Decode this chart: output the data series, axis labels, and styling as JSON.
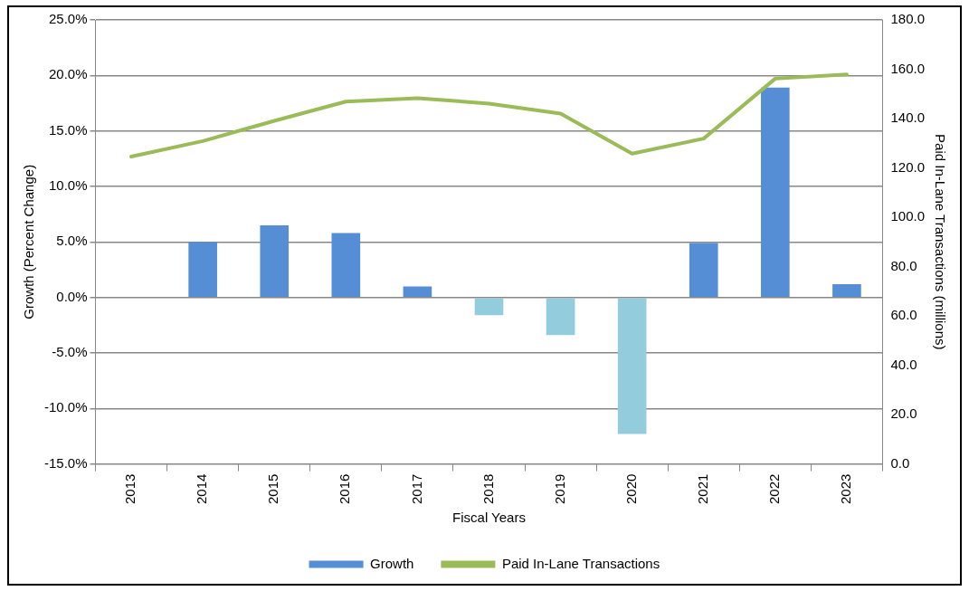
{
  "chart_data": {
    "type": "bar",
    "categories": [
      "2013",
      "2014",
      "2015",
      "2016",
      "2017",
      "2018",
      "2019",
      "2020",
      "2021",
      "2022",
      "2023"
    ],
    "xlabel": "Fiscal Years",
    "ylabel": "Growth (Percent Change)",
    "y2label": "Paid In-Lane Transactions (millions)",
    "series": [
      {
        "name": "Growth",
        "color": "#558ed5",
        "colors": [
          "#558ed5",
          "#558ed5",
          "#558ed5",
          "#558ed5",
          "#558ed5",
          "#93cddd",
          "#93cddd",
          "#93cddd",
          "#558ed5",
          "#558ed5",
          "#558ed5"
        ],
        "values": [
          null,
          5.0,
          6.5,
          5.8,
          1.0,
          -1.6,
          -3.4,
          -12.3,
          4.9,
          18.9,
          1.2
        ]
      },
      {
        "name": "Paid In-Lane Transactions",
        "type": "line",
        "axis": "y2",
        "color": "#9bbb59",
        "values": [
          124.6,
          130.9,
          139.1,
          146.9,
          148.3,
          146.1,
          142.0,
          125.8,
          131.9,
          156.2,
          157.9
        ]
      }
    ],
    "ylim": [
      -15,
      25
    ],
    "yticks": [
      {
        "value": -15,
        "label": "-15.0%"
      },
      {
        "value": -10,
        "label": "-10.0%"
      },
      {
        "value": -5,
        "label": "-5.0%"
      },
      {
        "value": 0,
        "label": "0.0%"
      },
      {
        "value": 5,
        "label": "5.0%"
      },
      {
        "value": 10,
        "label": "10.0%"
      },
      {
        "value": 15,
        "label": "15.0%"
      },
      {
        "value": 20,
        "label": "20.0%"
      },
      {
        "value": 25,
        "label": "25.0%"
      }
    ],
    "y2lim": [
      0,
      180
    ],
    "y2ticks": [
      {
        "value": 0,
        "label": "0.0"
      },
      {
        "value": 20,
        "label": "20.0"
      },
      {
        "value": 40,
        "label": "40.0"
      },
      {
        "value": 60,
        "label": "60.0"
      },
      {
        "value": 80,
        "label": "80.0"
      },
      {
        "value": 100,
        "label": "100.0"
      },
      {
        "value": 120,
        "label": "120.0"
      },
      {
        "value": 140,
        "label": "140.0"
      },
      {
        "value": 160,
        "label": "160.0"
      },
      {
        "value": 180,
        "label": "180.0"
      }
    ],
    "grid": "y",
    "legend": "bottom",
    "marker": "none"
  }
}
